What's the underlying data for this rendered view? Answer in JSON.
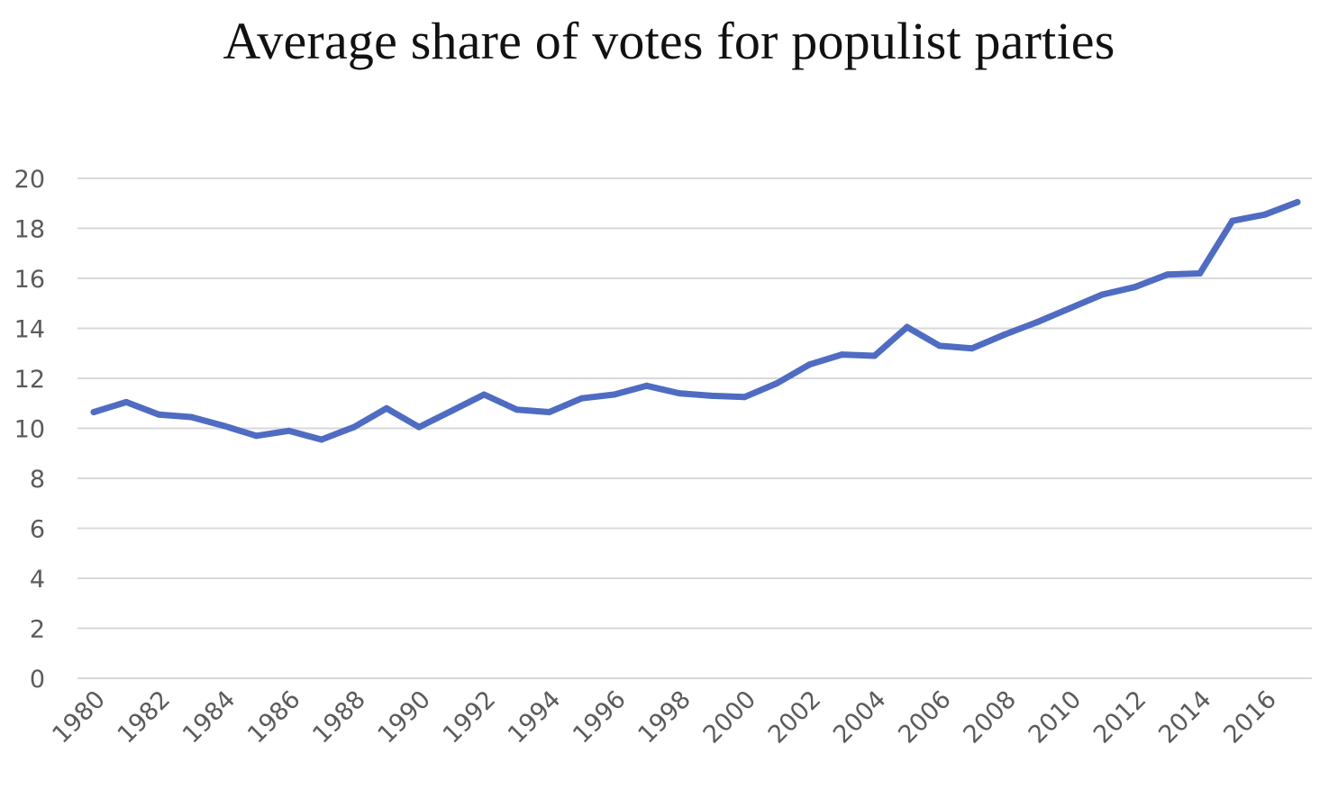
{
  "chart_data": {
    "type": "line",
    "title": "Average share of votes for populist parties",
    "xlabel": "",
    "ylabel": "",
    "x": [
      1980,
      1981,
      1982,
      1983,
      1984,
      1985,
      1986,
      1987,
      1988,
      1989,
      1990,
      1991,
      1992,
      1993,
      1994,
      1995,
      1996,
      1997,
      1998,
      1999,
      2000,
      2001,
      2002,
      2003,
      2004,
      2005,
      2006,
      2007,
      2008,
      2009,
      2010,
      2011,
      2012,
      2013,
      2014,
      2015,
      2016,
      2017
    ],
    "x_tick_labels": [
      "1980",
      "1982",
      "1984",
      "1986",
      "1988",
      "1990",
      "1992",
      "1994",
      "1996",
      "1998",
      "2000",
      "2002",
      "2004",
      "2006",
      "2008",
      "2010",
      "2012",
      "2014",
      "2016"
    ],
    "y_tick_labels": [
      "0",
      "2",
      "4",
      "6",
      "8",
      "10",
      "12",
      "14",
      "16",
      "18",
      "20"
    ],
    "ylim": [
      0,
      20
    ],
    "grid": true,
    "line_color": "#4f6cc2",
    "grid_color": "#d9d9d9",
    "series": [
      {
        "values": [
          10.65,
          11.05,
          10.55,
          10.45,
          10.1,
          9.7,
          9.9,
          9.55,
          10.05,
          10.8,
          10.05,
          10.7,
          11.35,
          10.75,
          10.65,
          11.2,
          11.35,
          11.7,
          11.4,
          11.3,
          11.25,
          11.8,
          12.55,
          12.95,
          12.9,
          14.05,
          13.3,
          13.2,
          13.75,
          14.25,
          14.8,
          15.35,
          15.65,
          16.15,
          16.2,
          18.3,
          18.55,
          19.05
        ]
      }
    ]
  }
}
